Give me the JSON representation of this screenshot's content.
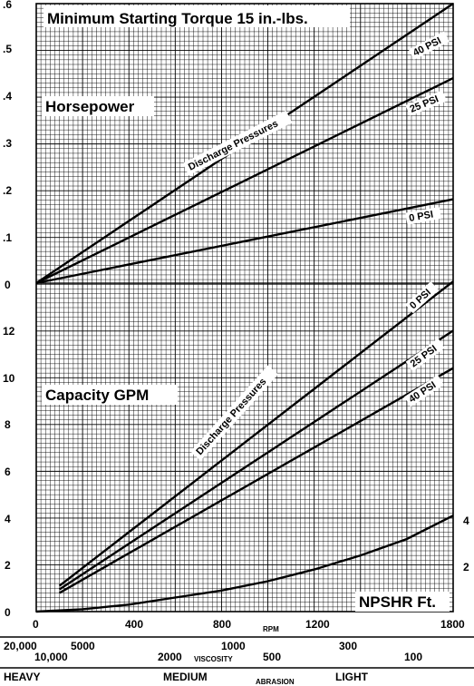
{
  "chart_data": [
    {
      "type": "line",
      "title": "Minimum Starting Torque 15 in.-lbs.",
      "ylabel": "Horsepower",
      "annotation": "Discharge Pressures",
      "x_range": [
        0,
        1800
      ],
      "ylim": [
        0,
        0.6
      ],
      "yticks": [
        ".6",
        ".5",
        ".4",
        ".3",
        ".2",
        ".1",
        "0"
      ],
      "grid": true,
      "series": [
        {
          "name": "40 PSI",
          "x": [
            0,
            1800
          ],
          "y": [
            0,
            0.6
          ]
        },
        {
          "name": "25 PSI",
          "x": [
            0,
            1800
          ],
          "y": [
            0,
            0.44
          ]
        },
        {
          "name": "0 PSI",
          "x": [
            0,
            1800
          ],
          "y": [
            0,
            0.18
          ]
        }
      ]
    },
    {
      "type": "line",
      "ylabel": "Capacity GPM",
      "annotation": "Discharge Pressures",
      "x_range": [
        0,
        1800
      ],
      "ylim": [
        0,
        14
      ],
      "yticks": [
        "12",
        "10",
        "8",
        "6",
        "4",
        "2",
        "0"
      ],
      "grid": true,
      "series": [
        {
          "name": "0 PSI",
          "x": [
            100,
            1800
          ],
          "y": [
            1.1,
            14.1
          ]
        },
        {
          "name": "25 PSI",
          "x": [
            100,
            1800
          ],
          "y": [
            0.95,
            12.0
          ]
        },
        {
          "name": "40 PSI",
          "x": [
            100,
            1800
          ],
          "y": [
            0.8,
            10.4
          ]
        }
      ]
    },
    {
      "type": "line",
      "ylabel": "NPSHR Ft.",
      "x_range": [
        0,
        1800
      ],
      "series": [
        {
          "name": "NPSHR",
          "x": [
            0,
            200,
            400,
            600,
            800,
            1000,
            1200,
            1400,
            1600,
            1800
          ],
          "y": [
            0,
            0.1,
            0.3,
            0.6,
            0.9,
            1.3,
            1.8,
            2.4,
            3.1,
            4.1
          ]
        }
      ],
      "right_ticks": [
        "4",
        "2"
      ]
    }
  ],
  "x_axis": {
    "ticks": [
      "0",
      "400",
      "800",
      "1200",
      "1800"
    ],
    "label": "RPM"
  },
  "viscosity": {
    "label": "VISCOSITY",
    "row1": [
      "20,000",
      "5000",
      "1000",
      "300"
    ],
    "row2": [
      "10,000",
      "2000",
      "500",
      "100"
    ]
  },
  "abrasion": {
    "label": "ABRASION",
    "levels": [
      "HEAVY",
      "MEDIUM",
      "LIGHT"
    ]
  }
}
